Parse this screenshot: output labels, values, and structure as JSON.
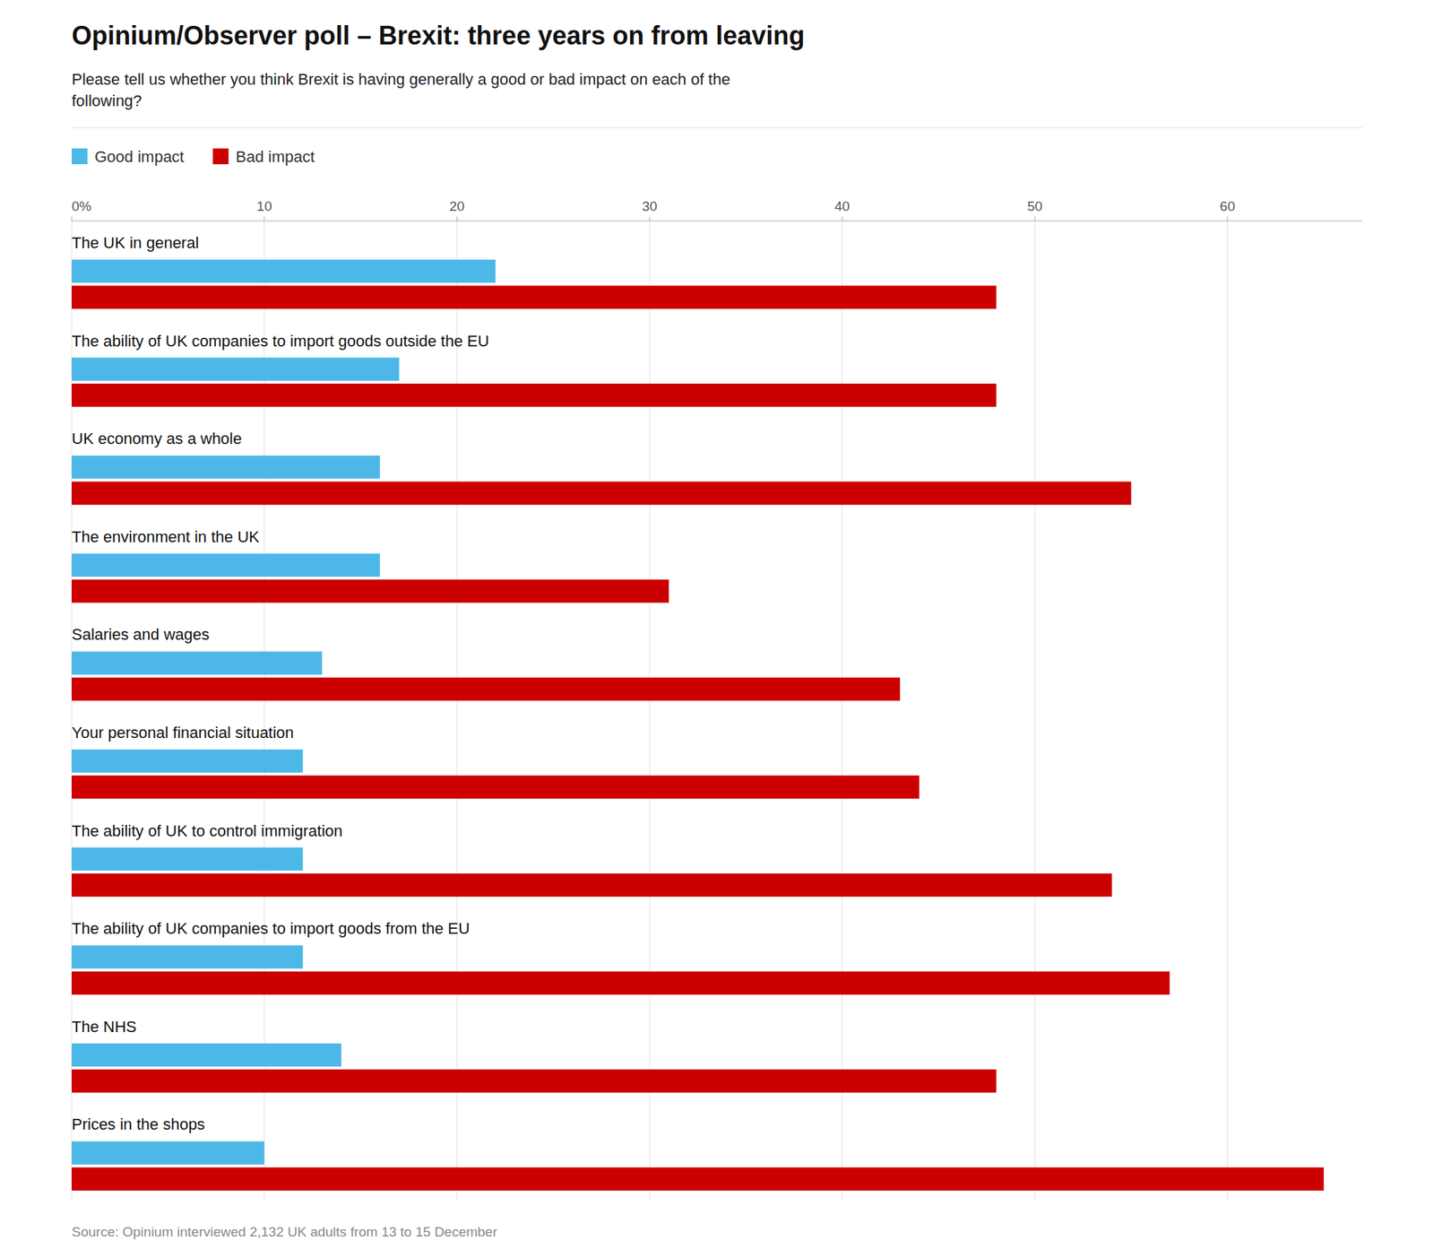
{
  "chart_data": {
    "type": "bar",
    "orientation": "horizontal",
    "title": "Opinium/Observer poll – Brexit: three years on from leaving",
    "subtitle": "Please tell us whether you think Brexit is having generally a good or bad impact on each of the\nfollowing?",
    "source": "Source: Opinium interviewed 2,132 UK adults from 13 to 15 December",
    "categories": [
      "The UK in general",
      "The ability of UK companies to import goods outside the EU",
      "UK economy as a whole",
      "The environment in the UK",
      "Salaries and wages",
      "Your personal financial situation",
      "The ability of UK to control immigration",
      "The ability of UK companies to import goods from the EU",
      "The NHS",
      "Prices in the shops"
    ],
    "series": [
      {
        "name": "Good impact",
        "color": "#4db8e8",
        "values": [
          22,
          17,
          16,
          16,
          13,
          12,
          12,
          12,
          14,
          10
        ]
      },
      {
        "name": "Bad impact",
        "color": "#cc0000",
        "values": [
          48,
          48,
          55,
          31,
          43,
          44,
          54,
          57,
          48,
          65
        ]
      }
    ],
    "xlim": [
      0,
      67
    ],
    "xticks": [
      {
        "value": 0,
        "label": "0%"
      },
      10,
      20,
      30,
      40,
      50,
      60
    ],
    "grid": true,
    "legend": "top left"
  }
}
